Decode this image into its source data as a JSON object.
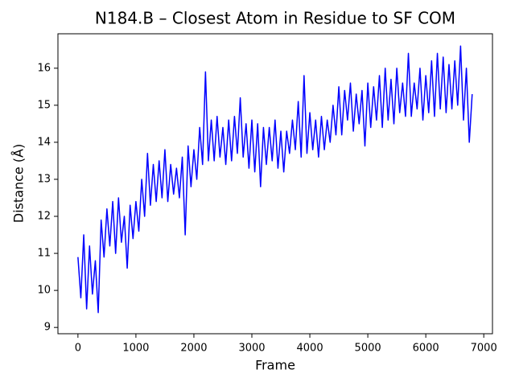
{
  "chart_data": {
    "type": "line",
    "title": "N184.B – Closest Atom in Residue to SF COM",
    "x_label": "Frame",
    "y_label": "Distance (Å)",
    "color": "#0000ff",
    "xlim": [
      -345,
      7150
    ],
    "ylim": [
      8.83,
      16.93
    ],
    "xticks": [
      0,
      1000,
      2000,
      3000,
      4000,
      5000,
      6000,
      7000
    ],
    "yticks": [
      9,
      10,
      11,
      12,
      13,
      14,
      15,
      16
    ],
    "x": [
      0,
      50,
      100,
      150,
      200,
      250,
      300,
      350,
      400,
      450,
      500,
      550,
      600,
      650,
      700,
      750,
      800,
      850,
      900,
      950,
      1000,
      1050,
      1100,
      1150,
      1200,
      1250,
      1300,
      1350,
      1400,
      1450,
      1500,
      1550,
      1600,
      1650,
      1700,
      1750,
      1800,
      1850,
      1900,
      1950,
      2000,
      2050,
      2100,
      2150,
      2200,
      2250,
      2300,
      2350,
      2400,
      2450,
      2500,
      2550,
      2600,
      2650,
      2700,
      2750,
      2800,
      2850,
      2900,
      2950,
      3000,
      3050,
      3100,
      3150,
      3200,
      3250,
      3300,
      3350,
      3400,
      3450,
      3500,
      3550,
      3600,
      3650,
      3700,
      3750,
      3800,
      3850,
      3900,
      3950,
      4000,
      4050,
      4100,
      4150,
      4200,
      4250,
      4300,
      4350,
      4400,
      4450,
      4500,
      4550,
      4600,
      4650,
      4700,
      4750,
      4800,
      4850,
      4900,
      4950,
      5000,
      5050,
      5100,
      5150,
      5200,
      5250,
      5300,
      5350,
      5400,
      5450,
      5500,
      5550,
      5600,
      5650,
      5700,
      5750,
      5800,
      5850,
      5900,
      5950,
      6000,
      6050,
      6100,
      6150,
      6200,
      6250,
      6300,
      6350,
      6400,
      6450,
      6500,
      6550,
      6600,
      6650,
      6700,
      6750,
      6800
    ],
    "values": [
      10.9,
      9.8,
      11.5,
      9.5,
      11.2,
      9.9,
      10.8,
      9.4,
      11.9,
      10.9,
      12.2,
      11.2,
      12.4,
      11.0,
      12.5,
      11.3,
      12.0,
      10.6,
      12.3,
      11.4,
      12.4,
      11.6,
      13.0,
      12.0,
      13.7,
      12.3,
      13.4,
      12.4,
      13.5,
      12.5,
      13.8,
      12.4,
      13.4,
      12.6,
      13.3,
      12.5,
      13.6,
      11.5,
      13.9,
      12.8,
      13.8,
      13.0,
      14.4,
      13.4,
      15.9,
      13.5,
      14.6,
      13.5,
      14.7,
      13.6,
      14.4,
      13.4,
      14.6,
      13.5,
      14.7,
      13.7,
      15.2,
      13.6,
      14.5,
      13.3,
      14.6,
      13.2,
      14.5,
      12.8,
      14.4,
      13.4,
      14.4,
      13.5,
      14.6,
      13.3,
      14.3,
      13.2,
      14.3,
      13.7,
      14.6,
      13.8,
      15.1,
      13.6,
      15.8,
      13.7,
      14.8,
      13.8,
      14.6,
      13.6,
      14.7,
      13.8,
      14.6,
      14.0,
      15.0,
      14.2,
      15.5,
      14.2,
      15.4,
      14.6,
      15.6,
      14.3,
      15.3,
      14.5,
      15.4,
      13.9,
      15.6,
      14.4,
      15.5,
      14.6,
      15.8,
      14.4,
      16.0,
      14.6,
      15.7,
      14.5,
      16.0,
      14.8,
      15.6,
      14.7,
      16.4,
      14.7,
      15.6,
      14.9,
      16.0,
      14.6,
      15.8,
      14.8,
      16.2,
      14.7,
      16.4,
      14.9,
      16.3,
      14.8,
      16.1,
      14.9,
      16.2,
      15.0,
      16.6,
      14.6,
      16.0,
      14.0,
      15.3
    ]
  }
}
